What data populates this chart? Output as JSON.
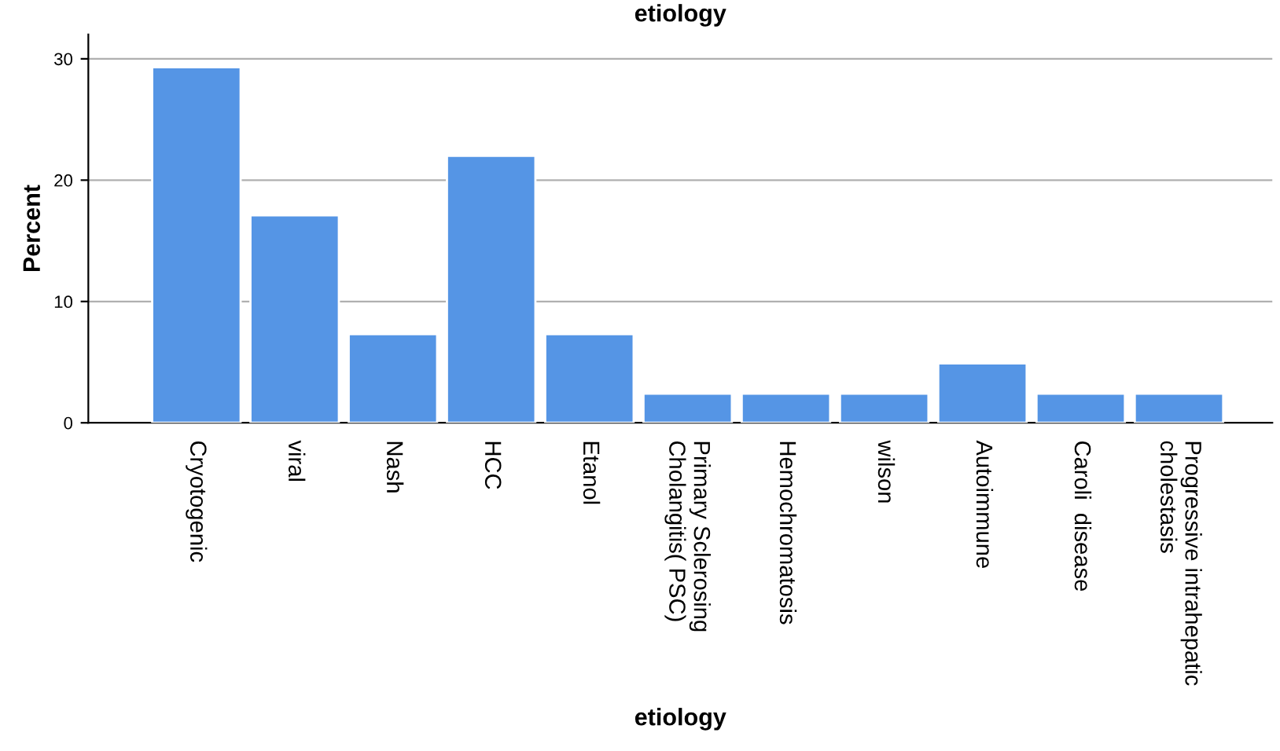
{
  "chart_data": {
    "type": "bar",
    "title": "etiology",
    "xlabel": "etiology",
    "ylabel": "Percent",
    "categories": [
      "Cryotogenic",
      "viral",
      "Nash",
      "HCC",
      "Etanol",
      "Primary Sclerosing\nCholangitis( PSC)",
      "Hemochromatosis",
      "wilson",
      "Autoimmune",
      "Caroli  disease",
      "Progressive intrahepatic\ncholestasis"
    ],
    "values": [
      29.3,
      17.1,
      7.3,
      22.0,
      7.3,
      2.4,
      2.4,
      2.4,
      4.9,
      2.4,
      2.4
    ],
    "color": "#5595e5",
    "ylim": [
      0,
      32
    ],
    "yticks": [
      0,
      10,
      20,
      30
    ],
    "grid": "y",
    "legend": false
  }
}
